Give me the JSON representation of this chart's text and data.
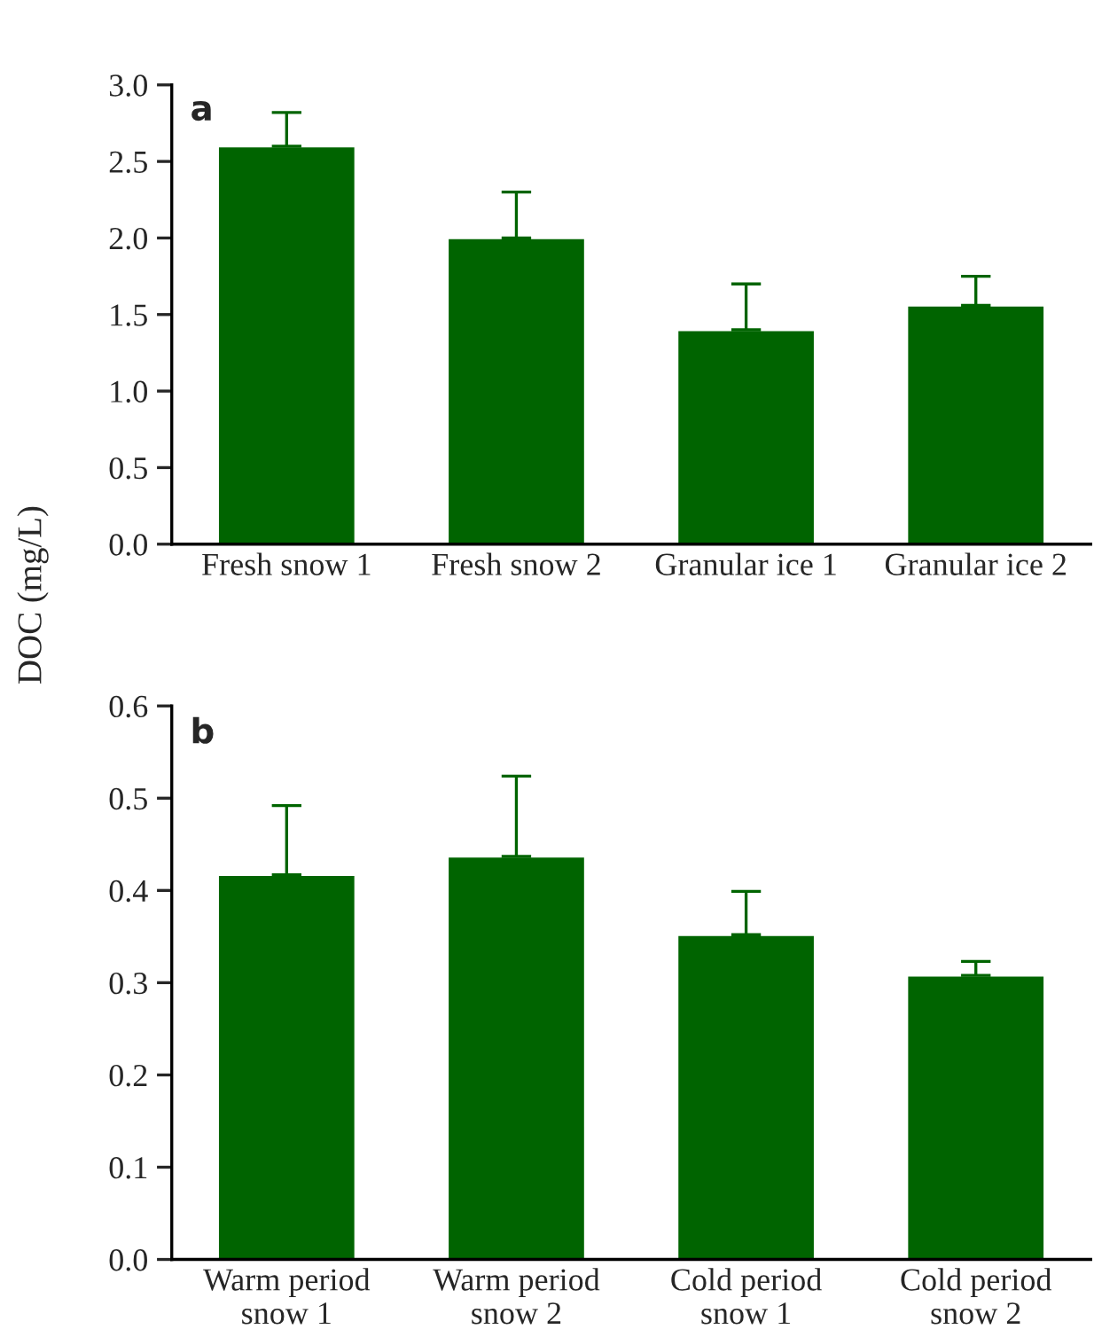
{
  "chart_data": [
    {
      "type": "bar",
      "ylabel": "DOC (mg/L)",
      "annotations": [
        "a"
      ],
      "categories": [
        "Fresh snow 1",
        "Fresh snow 2",
        "Granular ice 1",
        "Granular ice 2"
      ],
      "values": [
        2.6,
        2.0,
        1.4,
        1.56
      ],
      "errors": [
        [
          2.6,
          2.82
        ],
        [
          2.0,
          2.3
        ],
        [
          1.4,
          1.7
        ],
        [
          1.56,
          1.75
        ]
      ],
      "color": "#006400",
      "ylim": [
        0,
        3.0
      ],
      "yticks": [
        {
          "value": 0,
          "label": "0.0"
        },
        0.5,
        {
          "value": 1,
          "label": "1.0"
        },
        1.5,
        {
          "value": 2,
          "label": "2.0"
        },
        2.5,
        {
          "value": 3,
          "label": "3.0"
        }
      ],
      "grid": false
    },
    {
      "type": "bar",
      "annotations": [
        "b"
      ],
      "categories": [
        "Warm period\nsnow 1",
        "Warm period\nsnow 2",
        "Cold period\nsnow 1",
        "Cold period\nsnow 2"
      ],
      "values": [
        0.417,
        0.437,
        0.352,
        0.308
      ],
      "errors": [
        [
          0.417,
          0.492
        ],
        [
          0.437,
          0.524
        ],
        [
          0.352,
          0.399
        ],
        [
          0.308,
          0.323
        ]
      ],
      "color": "#006400",
      "ylim": [
        0,
        0.6
      ],
      "yticks": [
        {
          "value": 0,
          "label": "0.0"
        },
        0.1,
        0.2,
        0.3,
        0.4,
        0.5,
        0.6
      ],
      "grid": false
    }
  ]
}
